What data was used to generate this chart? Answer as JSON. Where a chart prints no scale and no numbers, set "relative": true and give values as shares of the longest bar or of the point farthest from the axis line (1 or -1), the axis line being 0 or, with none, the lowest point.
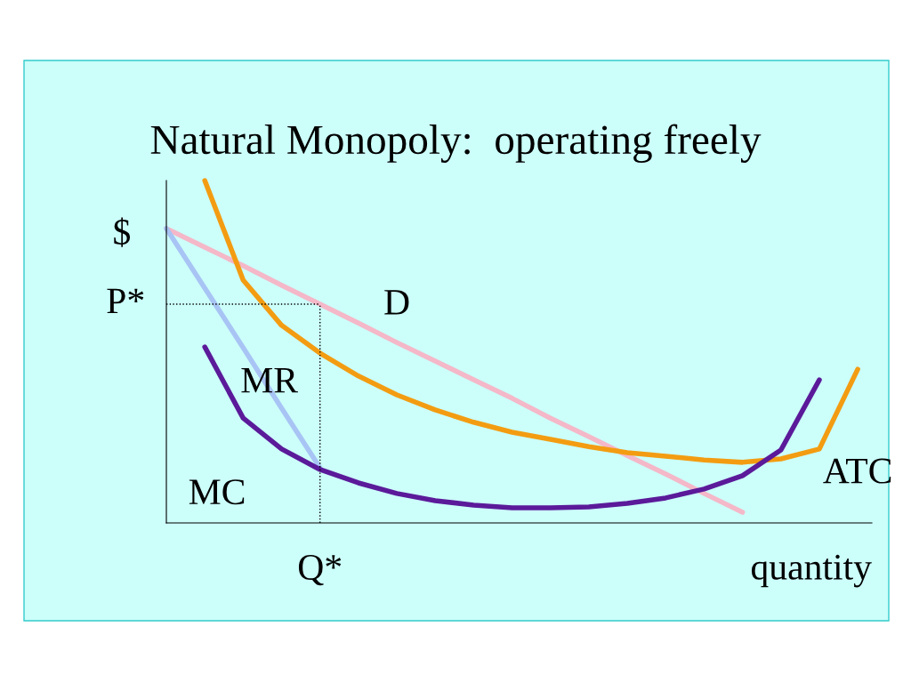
{
  "chart_data": {
    "type": "line",
    "title": "Natural Monopoly:  operating freely",
    "xlabel": "quantity",
    "ylabel": "$",
    "relative": true,
    "legend": false,
    "marker": "none",
    "line_style": "solid",
    "categories": [
      null,
      null,
      null,
      null,
      null,
      null,
      null,
      null,
      null,
      null,
      null,
      null,
      null,
      null,
      null,
      null,
      null,
      null,
      null
    ],
    "series": [
      {
        "name": "D",
        "color": "#f4b8c8",
        "values": [
          0.86,
          0.805,
          0.751,
          0.694,
          0.639,
          0.584,
          0.527,
          0.473,
          0.418,
          0.364,
          0.306,
          0.252,
          0.197,
          0.143,
          0.086,
          0.031,
          null,
          null,
          null
        ]
      },
      {
        "name": "MR",
        "color": "#a8c4f4",
        "values": [
          0.86,
          0.686,
          0.512,
          0.335,
          0.161,
          null,
          null,
          null,
          null,
          null,
          null,
          null,
          null,
          null,
          null,
          null,
          null,
          null,
          null
        ]
      },
      {
        "name": "ATC",
        "color": "#f39c12",
        "values": [
          null,
          1.0,
          0.709,
          0.577,
          0.496,
          0.429,
          0.374,
          0.33,
          0.294,
          0.265,
          0.244,
          0.223,
          0.205,
          0.195,
          0.184,
          0.177,
          0.187,
          0.216,
          0.449
        ]
      },
      {
        "name": "MC",
        "color": "#5b1a9a",
        "values": [
          null,
          0.514,
          0.306,
          0.216,
          0.156,
          0.117,
          0.086,
          0.065,
          0.052,
          0.044,
          0.044,
          0.047,
          0.057,
          0.073,
          0.099,
          0.138,
          0.213,
          0.418,
          null
        ]
      }
    ],
    "annotations": [
      "Q*"
    ],
    "ref_lines": [
      {
        "axis": "y",
        "value": 0.639,
        "label": "P*",
        "line_style": "dotted",
        "color": "#000000"
      }
    ]
  }
}
